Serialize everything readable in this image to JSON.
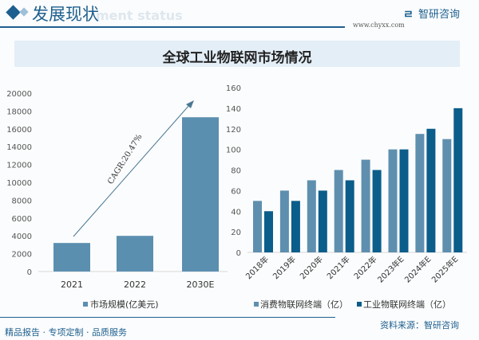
{
  "header": {
    "section_title": "发展现状",
    "section_subtitle": "ment status",
    "logo_text": "智研咨询",
    "logo_url": "www.chyxx.com"
  },
  "title": "全球工业物联网市场情况",
  "footer": {
    "slogan": "精品报告 · 专项定制 · 品质服务",
    "source": "资料来源：智研咨询"
  },
  "chart_data": [
    {
      "type": "bar",
      "categories": [
        "2021",
        "2022",
        "2030E"
      ],
      "series": [
        {
          "name": "市场规模(亿美元)",
          "values": [
            3200,
            4000,
            17300
          ],
          "color": "#5b8fb0"
        }
      ],
      "ylim": [
        0,
        20000
      ],
      "yticks": [
        "0",
        "2000",
        "4000",
        "6000",
        "8000",
        "10000",
        "12000",
        "14000",
        "16000",
        "18000",
        "20000"
      ],
      "annotation": "CAGR:20.47%",
      "legend": "bottom",
      "grid": false
    },
    {
      "type": "bar",
      "categories": [
        "2018年",
        "2019年",
        "2020年",
        "2021年",
        "2022年",
        "2023年E",
        "2024年E",
        "2025年E"
      ],
      "series": [
        {
          "name": "消费物联网终端（亿）",
          "values": [
            50,
            60,
            70,
            80,
            90,
            100,
            115,
            110
          ],
          "color": "#5f8fae"
        },
        {
          "name": "工业物联网终端（亿）",
          "values": [
            40,
            50,
            60,
            70,
            80,
            100,
            120,
            140
          ],
          "color": "#0b5d8a"
        }
      ],
      "ylim": [
        0,
        160
      ],
      "yticks": [
        "0",
        "20",
        "40",
        "60",
        "80",
        "100",
        "120",
        "140",
        "160"
      ],
      "legend": "bottom",
      "grid": false
    }
  ]
}
